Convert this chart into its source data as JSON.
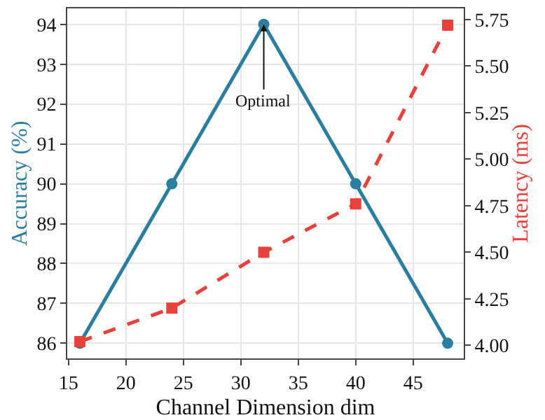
{
  "chart_data": {
    "type": "line",
    "xlabel": "Channel Dimension dim",
    "ylabel": "Accuracy (%)",
    "y2label": "Latency (ms)",
    "x": [
      16,
      24,
      32,
      40,
      48
    ],
    "series": [
      {
        "name": null,
        "color": "#2a7fa0",
        "values": [
          86,
          90,
          94,
          90,
          86
        ],
        "marker": "circle",
        "line_style": "solid"
      },
      {
        "name": null,
        "color": "#e8403a",
        "values": [
          4.02,
          4.2,
          4.5,
          4.76,
          5.72
        ],
        "axis": "y2",
        "marker": "square",
        "line_style": "dashed"
      }
    ],
    "xlim": [
      14.9,
      49.4
    ],
    "xticks": [
      15,
      20,
      25,
      30,
      35,
      40,
      45
    ],
    "ylim": [
      85.62,
      94.4
    ],
    "yticks": [
      86,
      87,
      88,
      89,
      90,
      91,
      92,
      93,
      94
    ],
    "y2lim": [
      3.93,
      5.81
    ],
    "y2ticks": [
      {
        "value": 4,
        "label": "4.00"
      },
      {
        "value": 4.25,
        "label": "4.25"
      },
      {
        "value": 4.5,
        "label": "4.50"
      },
      {
        "value": 4.75,
        "label": "4.75"
      },
      {
        "value": 5,
        "label": "5.00"
      },
      {
        "value": 5.25,
        "label": "5.25"
      },
      {
        "value": 5.5,
        "label": "5.50"
      },
      {
        "value": 5.75,
        "label": "5.75"
      }
    ],
    "annotations": [
      {
        "text": "Optimal",
        "x": 32,
        "y": 94
      }
    ],
    "grid": true
  }
}
